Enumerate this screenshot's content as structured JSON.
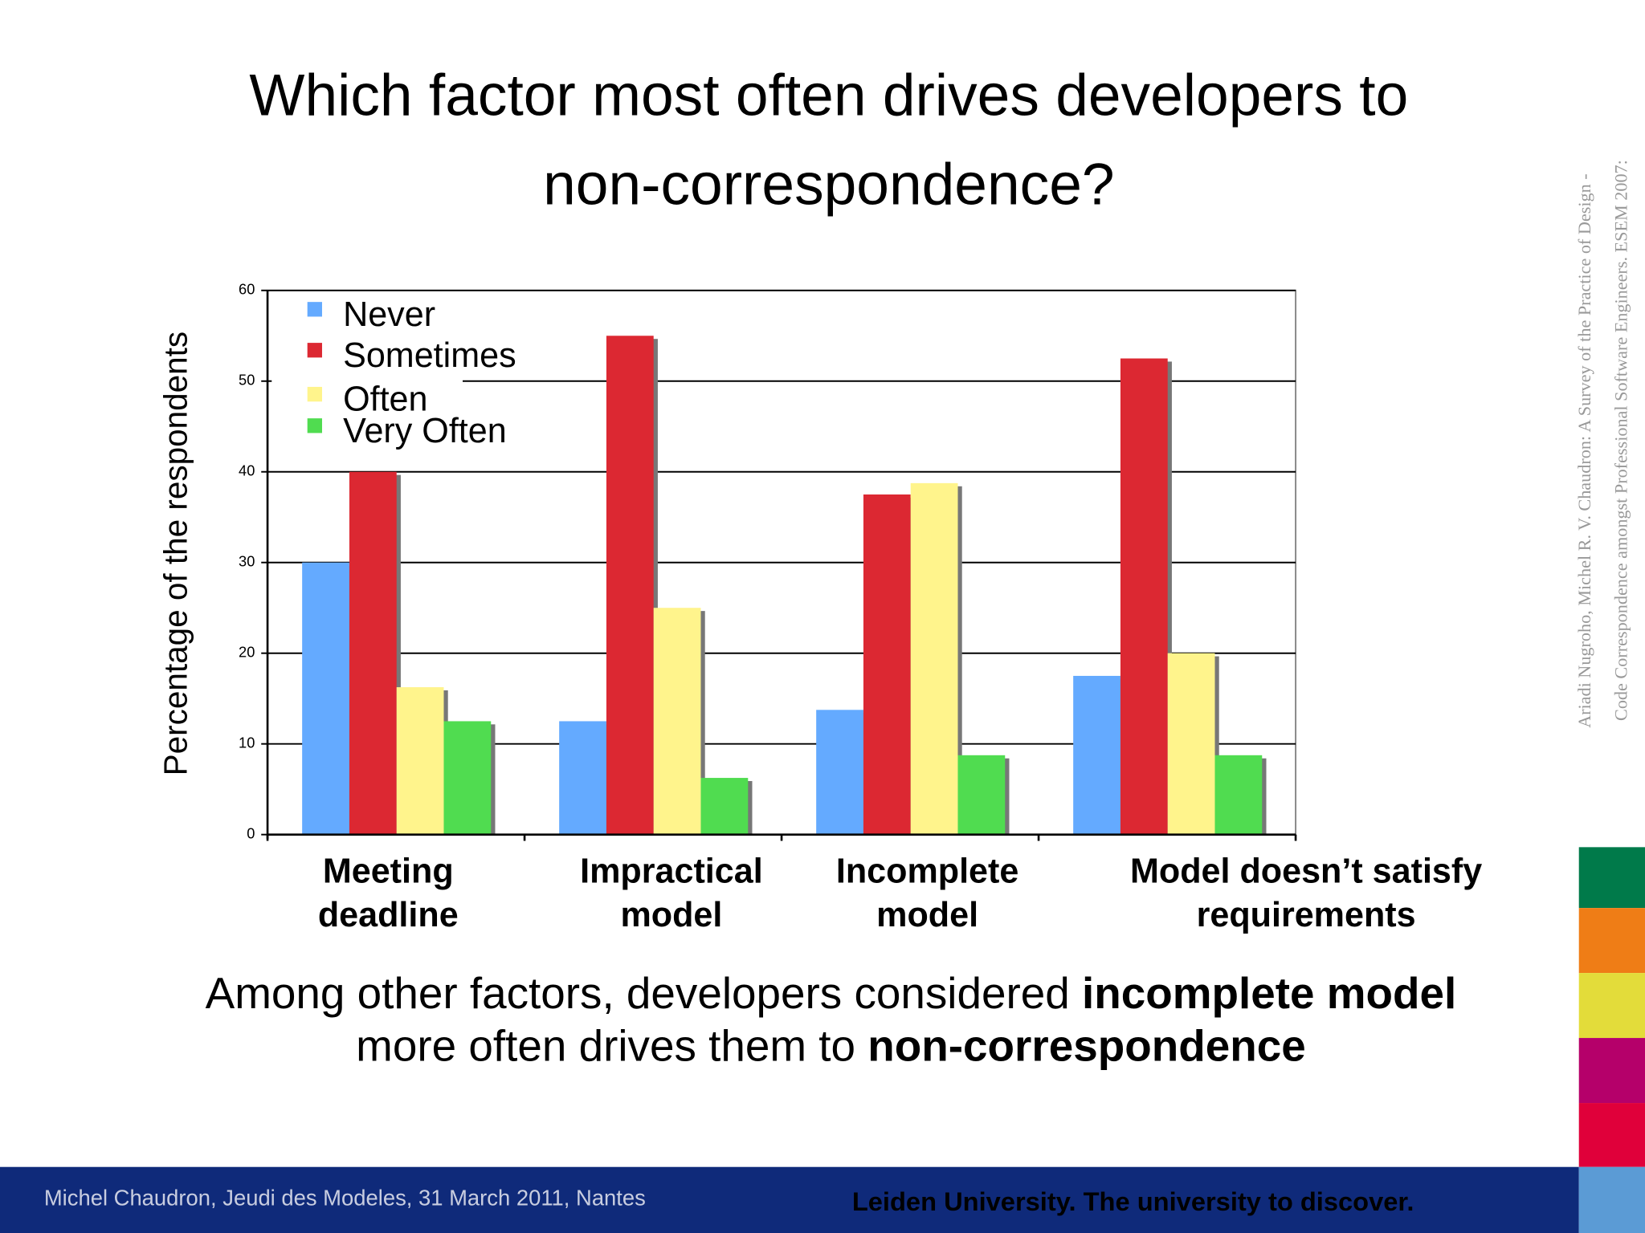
{
  "chart_data": {
    "type": "bar",
    "title": [
      "Which factor most often drives developers to",
      "non-correspondence?"
    ],
    "ylabel": "Percentage of the respondents",
    "categories": [
      [
        "Meeting",
        "deadline"
      ],
      [
        "Impractical",
        "model"
      ],
      [
        "Incomplete",
        "model"
      ],
      [
        "Model doesn’t satisfy",
        "requirements"
      ]
    ],
    "series": [
      {
        "name": "Never",
        "color": "#64aaff",
        "values": [
          30,
          12.5,
          13.75,
          17.5
        ]
      },
      {
        "name": "Sometimes",
        "color": "#dc2832",
        "values": [
          40,
          55,
          37.5,
          52.5
        ]
      },
      {
        "name": "Often",
        "color": "#fff48c",
        "values": [
          16.25,
          25,
          38.75,
          20
        ]
      },
      {
        "name": "Very Often",
        "color": "#50dc50",
        "values": [
          12.5,
          6.25,
          8.75,
          8.75
        ]
      }
    ],
    "ylim": [
      0,
      60
    ],
    "yticks": [
      0,
      10,
      20,
      30,
      40,
      50,
      60
    ],
    "grid": true,
    "legend": "upper left"
  },
  "conclusion": [
    [
      {
        "text": "Among other factors, developers considered ",
        "bold": false
      },
      {
        "text": "incomplete model",
        "bold": true
      }
    ],
    [
      {
        "text": "more often drives them to ",
        "bold": false
      },
      {
        "text": "non-correspondence",
        "bold": true
      }
    ]
  ],
  "citation": [
    "Ariadi Nugroho, Michel R. V. Chaudron: A Survey of the Practice of Design -",
    "Code Correspondence amongst Professional Software Engineers. ESEM 2007:"
  ],
  "footer": {
    "left": "Michel Chaudron, Jeudi des Modeles, 31 March 2011, Nantes",
    "right": "Leiden University. The university to discover."
  }
}
